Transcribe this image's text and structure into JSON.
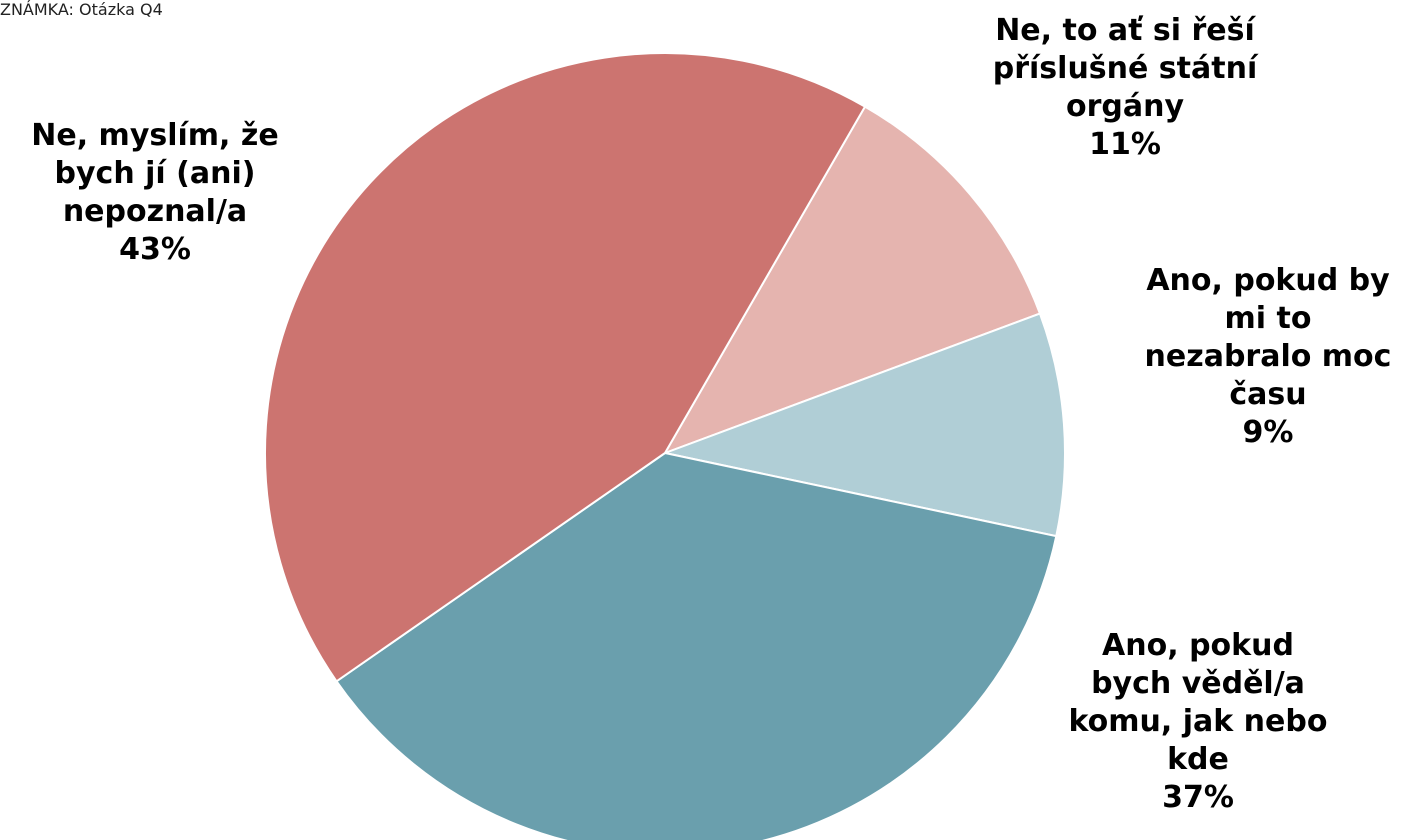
{
  "note": "ZNÁMKA: Otázka Q4",
  "chart_data": {
    "type": "pie",
    "title": "",
    "slices": [
      {
        "label_lines": [
          "Ne, to ať si řeší",
          "příslušné státní",
          "orgány"
        ],
        "value": 11,
        "value_label": "11%",
        "color": "#E5B4AF"
      },
      {
        "label_lines": [
          "Ano, pokud by",
          "mi to",
          "nezabralo moc",
          "času"
        ],
        "value": 9,
        "value_label": "9%",
        "color": "#B0CED6"
      },
      {
        "label_lines": [
          "Ano, pokud",
          "bych věděl/a",
          "komu, jak nebo",
          "kde"
        ],
        "value": 37,
        "value_label": "37%",
        "color": "#6A9FAD"
      },
      {
        "label_lines": [
          "Ne, myslím, že",
          "bych jí (ani)",
          "nepoznal/a"
        ],
        "value": 43,
        "value_label": "43%",
        "color": "#CC7470"
      }
    ]
  }
}
